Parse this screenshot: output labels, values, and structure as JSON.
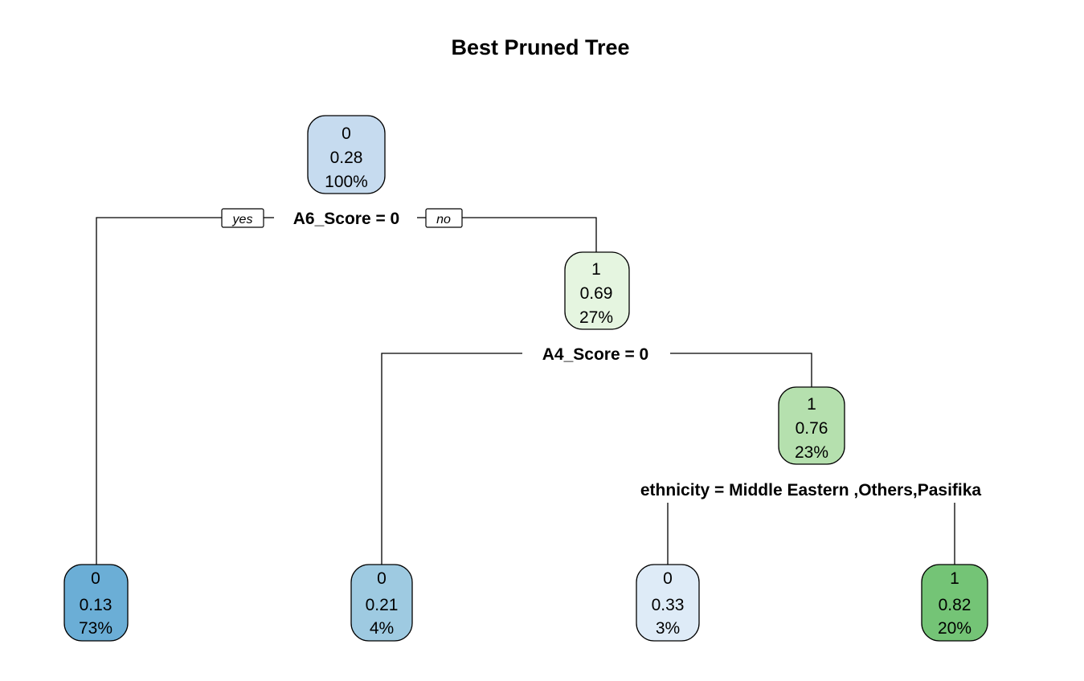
{
  "title": "Best Pruned Tree",
  "nodes": [
    {
      "id": "root",
      "cls": "0",
      "prob": "0.28",
      "pct": "100%",
      "color": "#c6dbef"
    },
    {
      "id": "n3",
      "cls": "1",
      "prob": "0.69",
      "pct": "27%",
      "color": "#e5f5e0"
    },
    {
      "id": "n7",
      "cls": "1",
      "prob": "0.76",
      "pct": "23%",
      "color": "#b5e0ae"
    },
    {
      "id": "leaf2",
      "cls": "0",
      "prob": "0.13",
      "pct": "73%",
      "color": "#6baed6"
    },
    {
      "id": "leaf6",
      "cls": "0",
      "prob": "0.21",
      "pct": "4%",
      "color": "#9ecae1"
    },
    {
      "id": "leaf14",
      "cls": "0",
      "prob": "0.33",
      "pct": "3%",
      "color": "#deebf7"
    },
    {
      "id": "leaf15",
      "cls": "1",
      "prob": "0.82",
      "pct": "20%",
      "color": "#74c476"
    }
  ],
  "splits": [
    {
      "id": "s_root",
      "label": "A6_Score = 0"
    },
    {
      "id": "s_n3",
      "label": "A4_Score = 0"
    },
    {
      "id": "s_n7",
      "label": "ethnicity = Middle Eastern ,Others,Pasifika"
    }
  ],
  "branch_labels": {
    "yes": "yes",
    "no": "no"
  }
}
